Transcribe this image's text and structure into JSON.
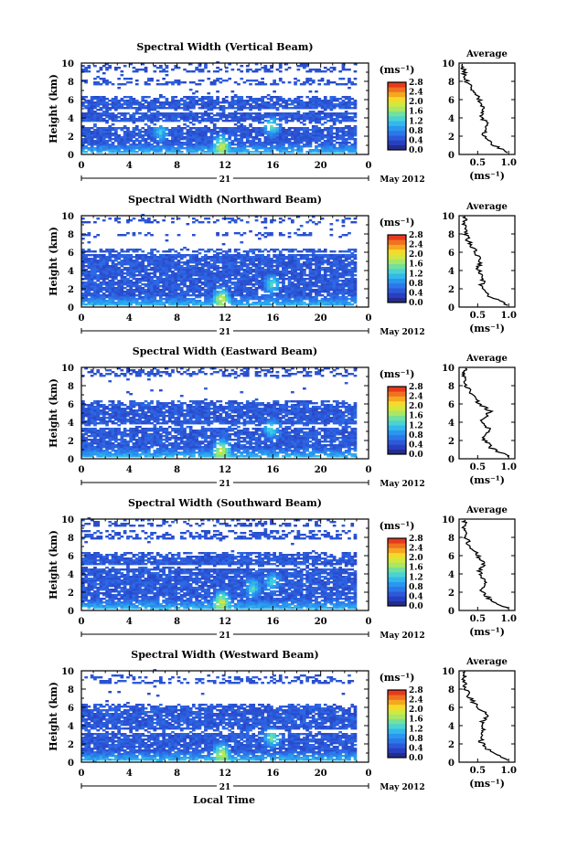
{
  "common": {
    "ylabel": "Height (km)",
    "y_ticks": [
      "0",
      "2",
      "4",
      "6",
      "8",
      "10"
    ],
    "x_ticks": [
      "0",
      "4",
      "8",
      "12",
      "16",
      "20",
      "0"
    ],
    "day_label": "21",
    "month_label": "May 2012",
    "xlabel": "Local Time",
    "unit_label": "(ms⁻¹)",
    "cb_ticks": [
      "0.0",
      "0.4",
      "0.8",
      "1.2",
      "1.6",
      "2.0",
      "2.4",
      "2.8"
    ],
    "avg_title": "Average",
    "avg_unit": "(ms⁻¹)",
    "avg_x_ticks": [
      "0.5",
      "1.0"
    ]
  },
  "chart_data": [
    {
      "type": "heatmap",
      "title": "Spectral Width (Vertical Beam)",
      "xlim": [
        0,
        24
      ],
      "ylim": [
        0,
        10
      ],
      "bands": [
        [
          0.2,
          6.4,
          0.28
        ],
        [
          7.6,
          8.4,
          0.22
        ],
        [
          9.0,
          9.8,
          0.18
        ]
      ],
      "gaps": [
        [
          3.0,
          3.6
        ],
        [
          4.6,
          5.0
        ]
      ],
      "hot": [
        [
          11.6,
          1.0,
          1.0
        ],
        [
          15.8,
          3.0,
          0.8
        ],
        [
          6.5,
          2.4,
          0.6
        ]
      ],
      "avg_profile": {
        "xlim": [
          0.2,
          1.1
        ],
        "x": [
          1.0,
          0.72,
          0.6,
          0.66,
          0.55,
          0.6,
          0.5,
          0.4,
          0.3,
          0.28,
          0.25
        ],
        "y": [
          0.2,
          1.2,
          2.2,
          3.2,
          4.2,
          5.2,
          6.2,
          7.2,
          8.2,
          9.2,
          9.9
        ]
      }
    },
    {
      "type": "heatmap",
      "title": "Spectral Width (Northward Beam)",
      "xlim": [
        0,
        24
      ],
      "ylim": [
        0,
        10
      ],
      "bands": [
        [
          0.2,
          6.4,
          0.3
        ],
        [
          7.8,
          8.2,
          0.2
        ],
        [
          9.2,
          9.7,
          0.2
        ]
      ],
      "gaps": [
        [
          5.8,
          6.0
        ]
      ],
      "hot": [
        [
          11.6,
          1.0,
          1.0
        ],
        [
          15.8,
          2.4,
          0.7
        ]
      ],
      "avg_profile": {
        "xlim": [
          0.2,
          1.1
        ],
        "x": [
          1.0,
          0.68,
          0.55,
          0.6,
          0.5,
          0.55,
          0.45,
          0.35,
          0.3,
          0.28,
          0.3
        ],
        "y": [
          0.2,
          1.2,
          2.2,
          3.2,
          4.2,
          5.2,
          6.2,
          7.2,
          8.2,
          9.2,
          9.9
        ]
      }
    },
    {
      "type": "heatmap",
      "title": "Spectral Width (Eastward Beam)",
      "xlim": [
        0,
        24
      ],
      "ylim": [
        0,
        10
      ],
      "bands": [
        [
          0.2,
          6.4,
          0.3
        ],
        [
          9.0,
          9.9,
          0.2
        ]
      ],
      "gaps": [
        [
          3.4,
          3.8
        ]
      ],
      "hot": [
        [
          11.6,
          1.0,
          1.0
        ],
        [
          15.8,
          3.2,
          0.7
        ]
      ],
      "avg_profile": {
        "xlim": [
          0.2,
          1.1
        ],
        "x": [
          1.0,
          0.72,
          0.6,
          0.68,
          0.58,
          0.7,
          0.5,
          0.38,
          0.3,
          0.28,
          0.3
        ],
        "y": [
          0.2,
          1.2,
          2.2,
          3.2,
          4.2,
          5.2,
          6.2,
          7.2,
          8.2,
          9.2,
          9.9
        ]
      }
    },
    {
      "type": "heatmap",
      "title": "Spectral Width (Southward Beam)",
      "xlim": [
        0,
        24
      ],
      "ylim": [
        0,
        10
      ],
      "bands": [
        [
          0.2,
          6.4,
          0.3
        ],
        [
          7.8,
          8.8,
          0.2
        ],
        [
          9.2,
          9.8,
          0.2
        ]
      ],
      "gaps": [
        [
          4.6,
          5.0
        ]
      ],
      "hot": [
        [
          11.6,
          1.0,
          1.0
        ],
        [
          14.2,
          2.4,
          0.7
        ],
        [
          15.8,
          3.0,
          0.6
        ]
      ],
      "avg_profile": {
        "xlim": [
          0.2,
          1.1
        ],
        "x": [
          1.0,
          0.7,
          0.55,
          0.62,
          0.52,
          0.6,
          0.48,
          0.36,
          0.3,
          0.28,
          0.3
        ],
        "y": [
          0.2,
          1.2,
          2.2,
          3.2,
          4.2,
          5.2,
          6.2,
          7.2,
          8.2,
          9.2,
          9.9
        ]
      }
    },
    {
      "type": "heatmap",
      "title": "Spectral Width (Westward Beam)",
      "xlim": [
        0,
        24
      ],
      "ylim": [
        0,
        10
      ],
      "bands": [
        [
          0.2,
          6.4,
          0.3
        ],
        [
          8.6,
          9.4,
          0.2
        ]
      ],
      "gaps": [
        [
          3.2,
          3.6
        ]
      ],
      "hot": [
        [
          11.6,
          1.0,
          1.0
        ],
        [
          15.8,
          2.6,
          0.8
        ]
      ],
      "avg_profile": {
        "xlim": [
          0.2,
          1.1
        ],
        "x": [
          1.0,
          0.7,
          0.55,
          0.6,
          0.55,
          0.66,
          0.48,
          0.35,
          0.3,
          0.28,
          0.3
        ],
        "y": [
          0.2,
          1.2,
          2.2,
          3.2,
          4.2,
          5.2,
          6.2,
          7.2,
          8.2,
          9.2,
          9.9
        ]
      }
    }
  ]
}
